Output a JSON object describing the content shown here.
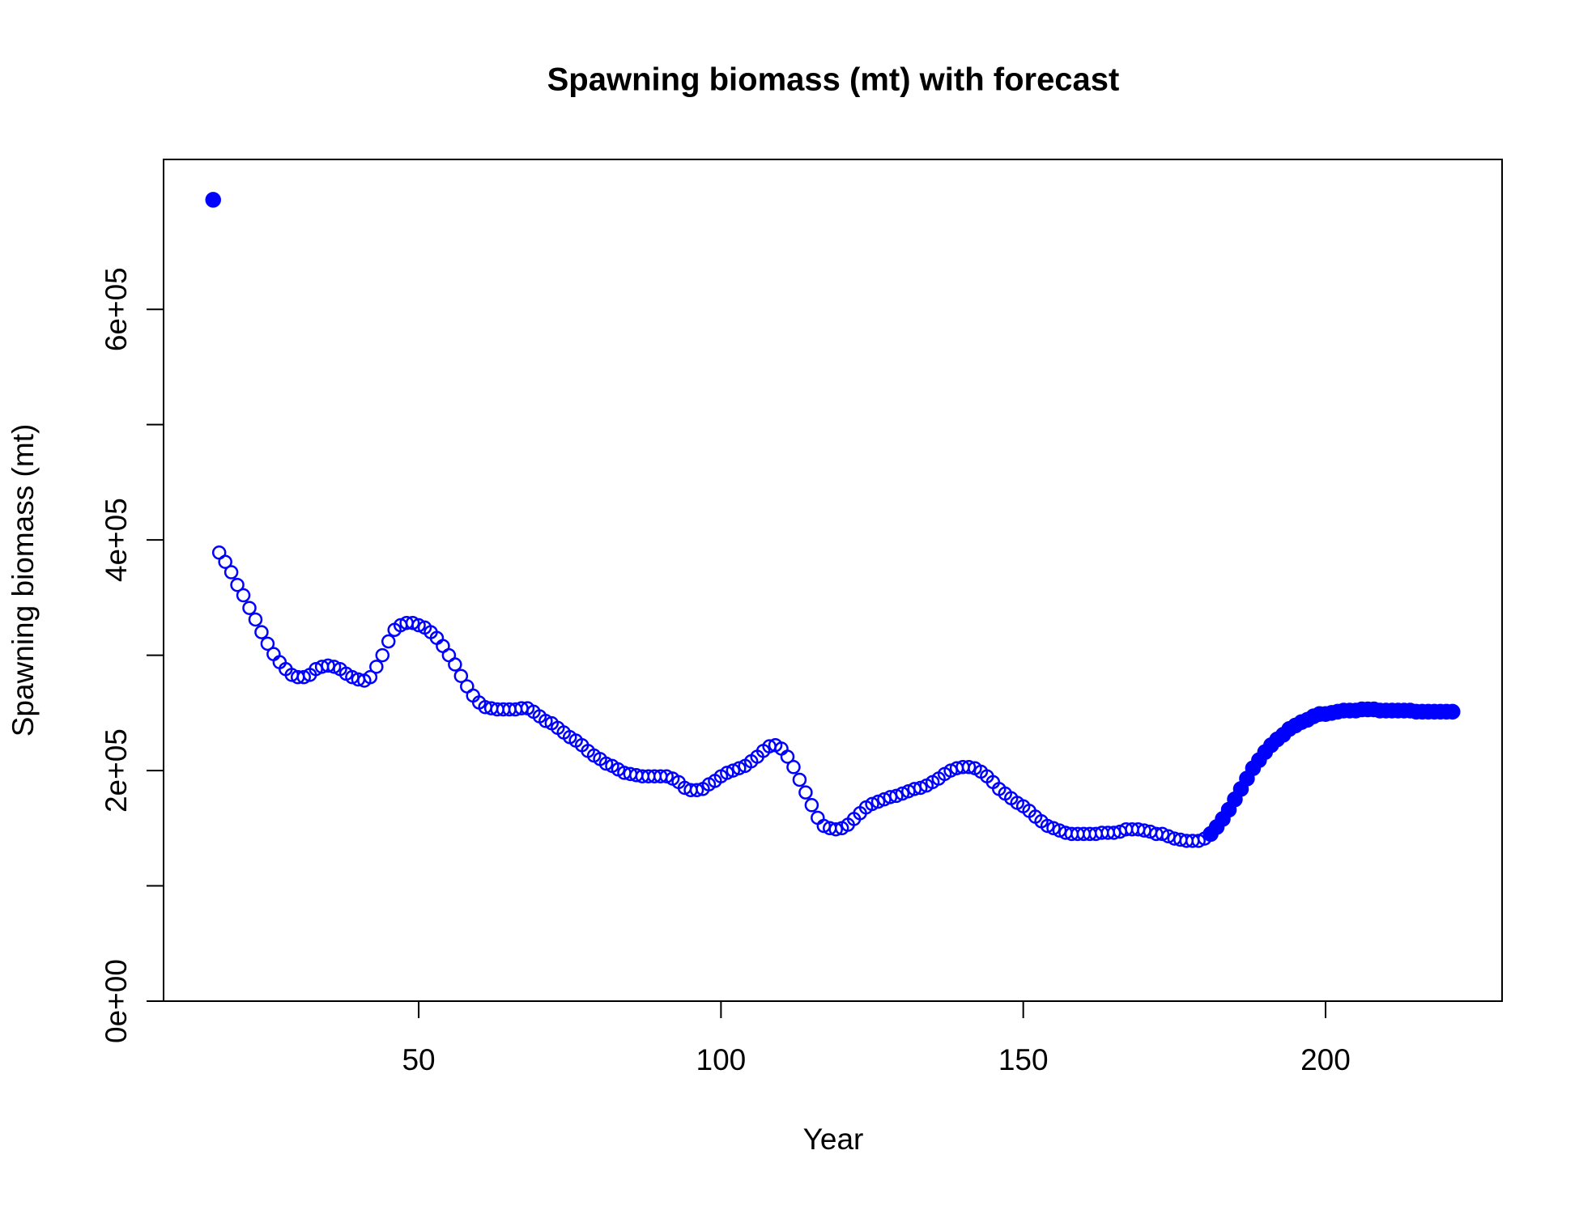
{
  "chart_data": {
    "type": "scatter",
    "title": "Spawning biomass (mt) with forecast",
    "x_label": "Year",
    "y_label": "Spawning biomass (mt)",
    "xlim": [
      7.8,
      229.2
    ],
    "ylim": [
      0,
      730000
    ],
    "xticks": [
      50,
      100,
      150,
      200
    ],
    "yticks": [
      {
        "value": 0,
        "label": "0e+00"
      },
      {
        "value": 200000,
        "label": "2e+05"
      },
      {
        "value": 400000,
        "label": "4e+05"
      },
      {
        "value": 600000,
        "label": "6e+05"
      }
    ],
    "yminor_ticks": [
      100000,
      300000,
      500000
    ],
    "series": [
      {
        "color": "#0000ff",
        "marker": "filled",
        "x": [
          16
        ],
        "values": [
          695000
        ]
      },
      {
        "color": "#0000ff",
        "marker": "open",
        "x": [
          17,
          18,
          19,
          20,
          21,
          22,
          23,
          24,
          25,
          26,
          27,
          28,
          29,
          30,
          31,
          32,
          33,
          34,
          35,
          36,
          37,
          38,
          39,
          40,
          41,
          42,
          43,
          44,
          45,
          46,
          47,
          48,
          49,
          50,
          51,
          52,
          53,
          54,
          55,
          56,
          57,
          58,
          59,
          60,
          61,
          62,
          63,
          64,
          65,
          66,
          67,
          68,
          69,
          70,
          71,
          72,
          73,
          74,
          75,
          76,
          77,
          78,
          79,
          80,
          81,
          82,
          83,
          84,
          85,
          86,
          87,
          88,
          89,
          90,
          91,
          92,
          93,
          94,
          95,
          96,
          97,
          98,
          99,
          100,
          101,
          102,
          103,
          104,
          105,
          106,
          107,
          108,
          109,
          110,
          111,
          112,
          113,
          114,
          115,
          116,
          117,
          118,
          119,
          120,
          121,
          122,
          123,
          124,
          125,
          126,
          127,
          128,
          129,
          130,
          131,
          132,
          133,
          134,
          135,
          136,
          137,
          138,
          139,
          140,
          141,
          142,
          143,
          144,
          145,
          146,
          147,
          148,
          149,
          150,
          151,
          152,
          153,
          154,
          155,
          156,
          157,
          158,
          159,
          160,
          161,
          162,
          163,
          164,
          165,
          166,
          167,
          168,
          169,
          170,
          171,
          172,
          173,
          174,
          175,
          176,
          177,
          178,
          179,
          180
        ],
        "values": [
          389000,
          381000,
          372000,
          361000,
          352000,
          341000,
          331000,
          320000,
          310000,
          301000,
          294000,
          288000,
          283000,
          281000,
          281000,
          283000,
          288000,
          290000,
          291000,
          290000,
          288000,
          284000,
          281000,
          279000,
          278000,
          281000,
          290000,
          300000,
          312000,
          322000,
          326000,
          328000,
          328000,
          326000,
          324000,
          320000,
          315000,
          308000,
          300000,
          292000,
          282000,
          273000,
          265000,
          259000,
          255000,
          254000,
          253000,
          253000,
          253000,
          253000,
          254000,
          254000,
          251000,
          247000,
          243000,
          241000,
          237000,
          233000,
          229000,
          226000,
          222000,
          217000,
          213000,
          210000,
          206000,
          204000,
          201000,
          198000,
          197000,
          196000,
          195000,
          195000,
          195000,
          195000,
          195000,
          193000,
          190000,
          185000,
          183000,
          183000,
          184000,
          188000,
          191000,
          195000,
          198000,
          200000,
          202000,
          204000,
          208000,
          212000,
          217000,
          221000,
          222000,
          219000,
          212000,
          203000,
          192000,
          181000,
          170000,
          159000,
          152000,
          150000,
          149000,
          150000,
          153000,
          158000,
          163000,
          168000,
          171000,
          173000,
          175000,
          177000,
          178000,
          180000,
          182000,
          184000,
          185000,
          187000,
          190000,
          193000,
          197000,
          200000,
          202000,
          203000,
          203000,
          202000,
          199000,
          195000,
          190000,
          184000,
          180000,
          176000,
          172000,
          169000,
          165000,
          160000,
          156000,
          152000,
          150000,
          148000,
          146000,
          145000,
          145000,
          145000,
          145000,
          145000,
          146000,
          146000,
          146000,
          147000,
          149000,
          149000,
          149000,
          148000,
          147000,
          145000,
          145000,
          143000,
          141000,
          140000,
          139000,
          139000,
          139000,
          141000
        ]
      },
      {
        "color": "#0000ff",
        "marker": "filled",
        "x": [
          181,
          182,
          183,
          184,
          185,
          186,
          187,
          188,
          189,
          190,
          191,
          192,
          193,
          194,
          195,
          196,
          197,
          198,
          199,
          200,
          201,
          202,
          203,
          204,
          205,
          206,
          207,
          208,
          209,
          210,
          211,
          212,
          213,
          214,
          215,
          216,
          217,
          218,
          219,
          220,
          221
        ],
        "values": [
          145000,
          151000,
          158000,
          166000,
          175000,
          184000,
          193000,
          202000,
          209000,
          216000,
          222000,
          227000,
          231000,
          236000,
          239000,
          242000,
          244000,
          247000,
          249000,
          249000,
          250000,
          251000,
          252000,
          252000,
          252000,
          253000,
          253000,
          253000,
          252000,
          252000,
          252000,
          252000,
          252000,
          252000,
          251000,
          251000,
          251000,
          251000,
          251000,
          251000,
          251000
        ]
      }
    ]
  }
}
